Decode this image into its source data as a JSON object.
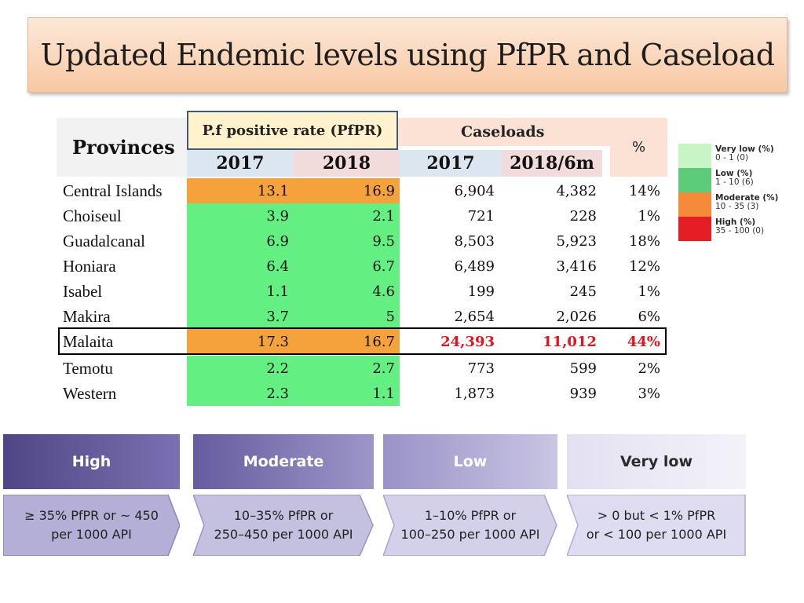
{
  "title": "Updated Endemic levels using PfPR and Caseload",
  "table": {
    "provinces_header": "Provinces",
    "pfpr_header": "P.f positive rate (PfPR)",
    "caseloads_header": "Caseloads",
    "percent_header": "%",
    "sub_headers": [
      "2017",
      "2018",
      "2017",
      "2018/6m"
    ],
    "rows": [
      {
        "name": "Central Islands",
        "pfpr_2017": "13.1",
        "pfpr_2018": "16.9",
        "case_2017": "6,904",
        "case_2018": "4,382",
        "pct": "14%"
      },
      {
        "name": "Choiseul",
        "pfpr_2017": "3.9",
        "pfpr_2018": "2.1",
        "case_2017": "721",
        "case_2018": "228",
        "pct": "1%"
      },
      {
        "name": "Guadalcanal",
        "pfpr_2017": "6.9",
        "pfpr_2018": "9.5",
        "case_2017": "8,503",
        "case_2018": "5,923",
        "pct": "18%"
      },
      {
        "name": "Honiara",
        "pfpr_2017": "6.4",
        "pfpr_2018": "6.7",
        "case_2017": "6,489",
        "case_2018": "3,416",
        "pct": "12%"
      },
      {
        "name": "Isabel",
        "pfpr_2017": "1.1",
        "pfpr_2018": "4.6",
        "case_2017": "199",
        "case_2018": "245",
        "pct": "1%"
      },
      {
        "name": "Makira",
        "pfpr_2017": "3.7",
        "pfpr_2018": "5",
        "case_2017": "2,654",
        "case_2018": "2,026",
        "pct": "6%"
      },
      {
        "name": "Malaita",
        "pfpr_2017": "17.3",
        "pfpr_2018": "16.7",
        "case_2017": "24,393",
        "case_2018": "11,012",
        "pct": "44%"
      },
      {
        "name": "Temotu",
        "pfpr_2017": "2.2",
        "pfpr_2018": "2.7",
        "case_2017": "773",
        "case_2018": "599",
        "pct": "2%"
      },
      {
        "name": "Western",
        "pfpr_2017": "2.3",
        "pfpr_2018": "1.1",
        "case_2017": "1,873",
        "case_2018": "939",
        "pct": "3%"
      }
    ]
  },
  "legend": [
    {
      "label": "Very low (%)",
      "range": "0 - 1 (0)",
      "color": "#c7f5c4"
    },
    {
      "label": "Low (%)",
      "range": "1 - 10 (6)",
      "color": "#5dcb79"
    },
    {
      "label": "Moderate (%)",
      "range": "10 - 35 (3)",
      "color": "#f58b3a"
    },
    {
      "label": "High (%)",
      "range": "35 - 100 (0)",
      "color": "#e51e25"
    }
  ],
  "categories": [
    {
      "name": "High",
      "line1": "≥ 35% PfPR or ~ 450",
      "line2": "per 1000 API"
    },
    {
      "name": "Moderate",
      "line1": "10–35% PfPR or",
      "line2": "250–450 per 1000 API"
    },
    {
      "name": "Low",
      "line1": "1–10% PfPR or",
      "line2": "100–250 per 1000 API"
    },
    {
      "name": "Very low",
      "line1": "> 0 but < 1% PfPR",
      "line2": "or < 100 per 1000 API"
    }
  ]
}
